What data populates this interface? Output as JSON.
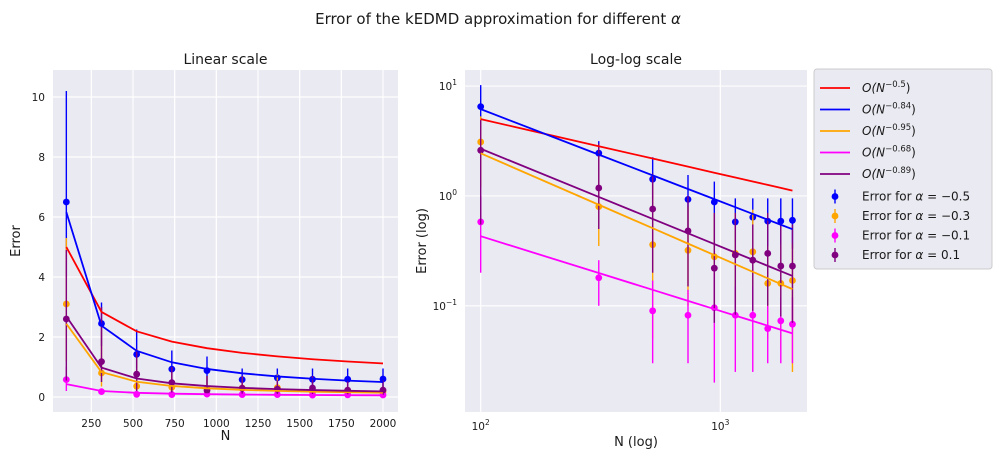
{
  "figure": {
    "title_prefix": "Error of the kEDMD approximation for different ",
    "title_symbol": "α"
  },
  "chart_data": [
    {
      "type": "scatter",
      "title": "Linear scale",
      "xlabel": "N",
      "ylabel": "Error",
      "xscale": "linear",
      "yscale": "linear",
      "xlim": [
        20,
        2090
      ],
      "ylim": [
        -0.5,
        10.9
      ],
      "xticks": [
        250,
        500,
        750,
        1000,
        1250,
        1500,
        1750,
        2000
      ],
      "xtick_labels": [
        "250",
        "500",
        "750",
        "1000",
        "1250",
        "1500",
        "1750",
        "2000"
      ],
      "yticks": [
        0,
        2,
        4,
        6,
        8,
        10
      ],
      "ytick_labels": [
        "0",
        "2",
        "4",
        "6",
        "8",
        "10"
      ],
      "grid": true
    },
    {
      "type": "scatter",
      "title": "Log-log scale",
      "xlabel": "N (log)",
      "ylabel": "Error (log)",
      "xscale": "log",
      "yscale": "log",
      "xlim": [
        86,
        2300
      ],
      "ylim": [
        0.0108,
        14
      ],
      "xticks": [
        100,
        1000
      ],
      "xtick_labels": [
        {
          "base": "10",
          "exp": "2"
        },
        {
          "base": "10",
          "exp": "3"
        }
      ],
      "yticks": [
        0.1,
        1,
        10
      ],
      "ytick_labels": [
        {
          "base": "10",
          "exp": "−1"
        },
        {
          "base": "10",
          "exp": "0"
        },
        {
          "base": "10",
          "exp": "1"
        }
      ],
      "grid": true
    }
  ],
  "series_data": {
    "N": [
      100,
      311,
      522,
      733,
      944,
      1155,
      1366,
      1577,
      1788,
      2000
    ],
    "fits": [
      {
        "name": "O(N^{-0.5})",
        "label_base": "O(N",
        "label_exp": "−0.5",
        "label_close": ")",
        "color": "#ff0000",
        "exponent": -0.5,
        "coef": 50.0
      },
      {
        "name": "O(N^{-0.84})",
        "label_base": "O(N",
        "label_exp": "−0.84",
        "label_close": ")",
        "color": "#0000ff",
        "exponent": -0.84,
        "coef": 295.0
      },
      {
        "name": "O(N^{-0.95})",
        "label_base": "O(N",
        "label_exp": "−0.95",
        "label_close": ")",
        "color": "#ffa500",
        "exponent": -0.95,
        "coef": 194.0
      },
      {
        "name": "O(N^{-0.68})",
        "label_base": "O(N",
        "label_exp": "−0.68",
        "label_close": ")",
        "color": "#ff00ff",
        "exponent": -0.68,
        "coef": 9.85
      },
      {
        "name": "O(N^{-0.89})",
        "label_base": "O(N",
        "label_exp": "−0.89",
        "label_close": ")",
        "color": "#800080",
        "exponent": -0.89,
        "coef": 162.0
      }
    ],
    "errors": [
      {
        "name": "Error for α = −0.5",
        "label_prefix": "Error for ",
        "label_symbol": "α",
        "label_value": " = −0.5",
        "color": "#0000ff",
        "mean": [
          6.5,
          2.45,
          1.42,
          0.93,
          0.88,
          0.58,
          0.64,
          0.59,
          0.59,
          0.6
        ],
        "lower": [
          4.0,
          1.7,
          0.95,
          0.45,
          0.38,
          0.38,
          0.38,
          0.35,
          0.33,
          0.33
        ],
        "upper": [
          10.2,
          3.15,
          2.25,
          1.55,
          1.35,
          0.95,
          0.95,
          0.95,
          0.95,
          0.95
        ]
      },
      {
        "name": "Error for α = −0.3",
        "label_prefix": "Error for ",
        "label_symbol": "α",
        "label_value": " = −0.3",
        "color": "#ffa500",
        "mean": [
          3.1,
          0.8,
          0.36,
          0.32,
          0.28,
          0.3,
          0.31,
          0.16,
          0.16,
          0.17
        ],
        "lower": [
          1.2,
          0.35,
          0.05,
          0.1,
          0.09,
          0.09,
          0.1,
          0.05,
          0.04,
          0.025
        ],
        "upper": [
          5.3,
          2.3,
          1.3,
          0.8,
          0.7,
          0.7,
          0.75,
          0.35,
          0.36,
          0.37
        ]
      },
      {
        "name": "Error for α = −0.1",
        "label_prefix": "Error for ",
        "label_symbol": "α",
        "label_value": " = −0.1",
        "color": "#ff00ff",
        "mean": [
          0.58,
          0.18,
          0.09,
          0.082,
          0.096,
          0.082,
          0.082,
          0.062,
          0.073,
          0.068
        ],
        "lower": [
          0.2,
          0.1,
          0.03,
          0.03,
          0.02,
          0.025,
          0.025,
          0.03,
          0.03,
          0.03
        ],
        "upper": [
          1.0,
          0.26,
          0.17,
          0.14,
          0.2,
          0.15,
          0.15,
          0.1,
          0.12,
          0.12
        ]
      },
      {
        "name": "Error for α = 0.1",
        "label_prefix": "Error for ",
        "label_symbol": "α",
        "label_value": " = 0.1",
        "color": "#800080",
        "mean": [
          2.6,
          1.18,
          0.76,
          0.48,
          0.22,
          0.29,
          0.26,
          0.3,
          0.23,
          0.23
        ],
        "lower": [
          0.55,
          0.5,
          0.2,
          0.15,
          0.07,
          0.08,
          0.09,
          0.1,
          0.08,
          0.07
        ],
        "upper": [
          4.9,
          3.0,
          1.6,
          1.0,
          0.7,
          0.7,
          0.55,
          0.7,
          0.55,
          0.55
        ]
      }
    ]
  }
}
